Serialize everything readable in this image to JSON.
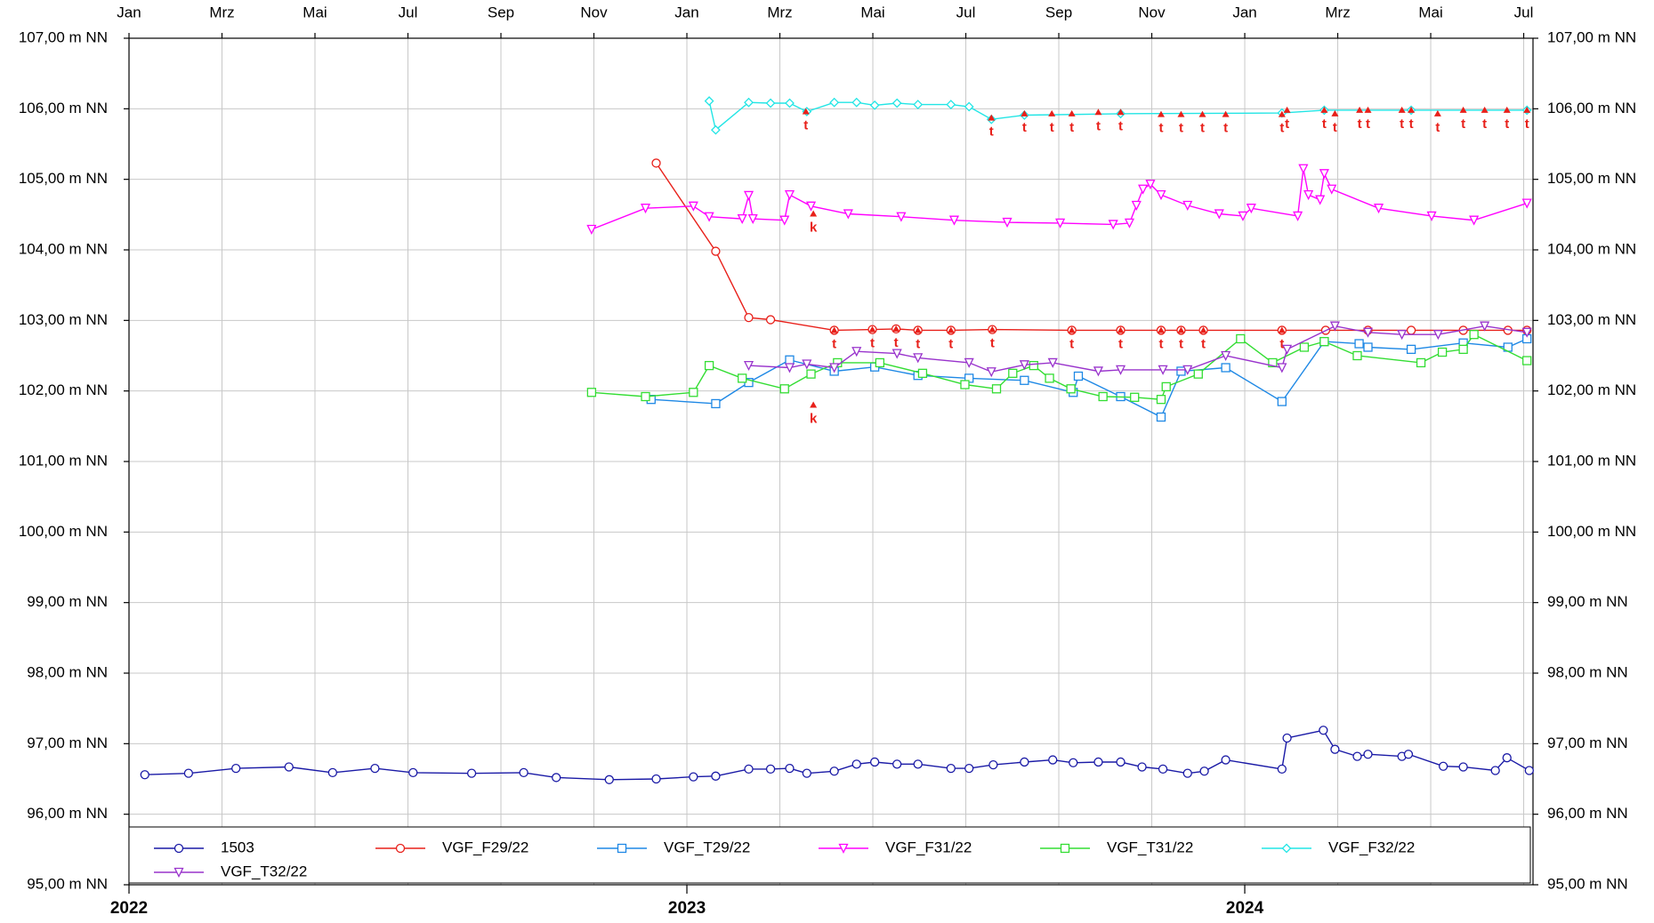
{
  "chart_data": {
    "type": "line",
    "xlim": [
      0,
      30.2
    ],
    "x2ticks": [
      {
        "value": 0,
        "label": "Jan"
      },
      {
        "value": 2,
        "label": "Mrz"
      },
      {
        "value": 4,
        "label": "Mai"
      },
      {
        "value": 6,
        "label": "Jul"
      },
      {
        "value": 8,
        "label": "Sep"
      },
      {
        "value": 10,
        "label": "Nov"
      },
      {
        "value": 12,
        "label": "Jan"
      },
      {
        "value": 14,
        "label": "Mrz"
      },
      {
        "value": 16,
        "label": "Mai"
      },
      {
        "value": 18,
        "label": "Jul"
      },
      {
        "value": 20,
        "label": "Sep"
      },
      {
        "value": 22,
        "label": "Nov"
      },
      {
        "value": 24,
        "label": "Jan"
      },
      {
        "value": 26,
        "label": "Mrz"
      },
      {
        "value": 28,
        "label": "Mai"
      },
      {
        "value": 30,
        "label": "Jul"
      }
    ],
    "xticks": [
      {
        "value": 0,
        "label": "2022"
      },
      {
        "value": 12,
        "label": "2023"
      },
      {
        "value": 24,
        "label": "2024"
      }
    ],
    "ylim": [
      95,
      107
    ],
    "yticks": [
      {
        "value": 95,
        "label": "95,00 m NN"
      },
      {
        "value": 96,
        "label": "96,00 m NN"
      },
      {
        "value": 97,
        "label": "97,00 m NN"
      },
      {
        "value": 98,
        "label": "98,00 m NN"
      },
      {
        "value": 99,
        "label": "99,00 m NN"
      },
      {
        "value": 100,
        "label": "100,00 m NN"
      },
      {
        "value": 101,
        "label": "101,00 m NN"
      },
      {
        "value": 102,
        "label": "102,00 m NN"
      },
      {
        "value": 103,
        "label": "103,00 m NN"
      },
      {
        "value": 104,
        "label": "104,00 m NN"
      },
      {
        "value": 105,
        "label": "105,00 m NN"
      },
      {
        "value": 106,
        "label": "106,00 m NN"
      },
      {
        "value": 107,
        "label": "107,00 m NN"
      }
    ],
    "grid": true,
    "legend": "bottom",
    "series": [
      {
        "name": "1503",
        "color": "#1a1aa6",
        "marker": "circle",
        "x": [
          0.34,
          1.28,
          2.3,
          3.44,
          4.38,
          5.29,
          6.11,
          7.37,
          8.49,
          9.19,
          10.33,
          11.34,
          12.14,
          12.62,
          13.33,
          13.8,
          14.21,
          14.58,
          15.17,
          15.65,
          16.04,
          16.52,
          16.97,
          17.68,
          18.07,
          18.59,
          19.26,
          19.87,
          20.31,
          20.85,
          21.33,
          21.79,
          22.24,
          22.77,
          23.13,
          23.59,
          24.8,
          24.91,
          25.69,
          25.94,
          26.42,
          26.65,
          27.38,
          27.52,
          28.27,
          28.7,
          29.39,
          29.64,
          30.12
        ],
        "values": [
          96.56,
          96.58,
          96.65,
          96.67,
          96.59,
          96.65,
          96.59,
          96.58,
          96.59,
          96.52,
          96.49,
          96.5,
          96.53,
          96.54,
          96.64,
          96.64,
          96.65,
          96.58,
          96.61,
          96.71,
          96.74,
          96.71,
          96.71,
          96.65,
          96.65,
          96.7,
          96.74,
          96.77,
          96.73,
          96.74,
          96.74,
          96.67,
          96.64,
          96.58,
          96.61,
          96.77,
          96.64,
          97.08,
          97.19,
          96.92,
          96.82,
          96.85,
          96.82,
          96.85,
          96.68,
          96.67,
          96.62,
          96.8,
          96.62
        ]
      },
      {
        "name": "VGF_F29/22",
        "color": "#e8201a",
        "marker": "circle",
        "x": [
          11.34,
          12.62,
          13.33,
          13.8,
          15.17,
          15.99,
          16.5,
          16.97,
          17.68,
          18.57,
          20.28,
          21.33,
          22.2,
          22.63,
          23.11,
          24.8,
          25.74,
          26.65,
          27.58,
          28.7,
          29.66,
          30.07
        ],
        "values": [
          105.23,
          103.98,
          103.04,
          103.01,
          102.86,
          102.87,
          102.88,
          102.86,
          102.86,
          102.87,
          102.86,
          102.86,
          102.86,
          102.86,
          102.86,
          102.86,
          102.86,
          102.86,
          102.86,
          102.86,
          102.86,
          102.86
        ]
      },
      {
        "name": "VGF_T29/22",
        "color": "#1e88e5",
        "marker": "square",
        "x": [
          11.23,
          12.62,
          13.33,
          14.21,
          15.17,
          16.04,
          16.97,
          18.07,
          19.26,
          20.31,
          20.42,
          21.33,
          22.2,
          22.63,
          23.59,
          24.8,
          25.71,
          26.46,
          26.65,
          27.58,
          28.7,
          29.66,
          30.07
        ],
        "values": [
          101.88,
          101.82,
          102.12,
          102.44,
          102.28,
          102.34,
          102.22,
          102.18,
          102.15,
          101.98,
          102.21,
          101.92,
          101.63,
          102.28,
          102.33,
          101.85,
          102.7,
          102.67,
          102.62,
          102.59,
          102.68,
          102.62,
          102.74
        ]
      },
      {
        "name": "VGF_F31/22",
        "color": "#ff00ff",
        "marker": "triangle",
        "x": [
          9.95,
          11.11,
          12.14,
          12.48,
          13.19,
          13.33,
          13.42,
          14.1,
          14.21,
          14.67,
          15.47,
          16.61,
          17.75,
          18.89,
          20.03,
          21.17,
          21.52,
          21.67,
          21.81,
          21.97,
          22.2,
          22.77,
          23.45,
          23.96,
          24.14,
          25.14,
          25.26,
          25.37,
          25.62,
          25.71,
          25.87,
          26.88,
          28.02,
          28.93,
          30.07
        ],
        "values": [
          104.29,
          104.59,
          104.62,
          104.47,
          104.44,
          104.77,
          104.44,
          104.42,
          104.78,
          104.62,
          104.51,
          104.47,
          104.42,
          104.39,
          104.38,
          104.36,
          104.38,
          104.63,
          104.86,
          104.93,
          104.78,
          104.63,
          104.51,
          104.48,
          104.59,
          104.48,
          105.15,
          104.78,
          104.71,
          105.08,
          104.86,
          104.59,
          104.48,
          104.42,
          104.66
        ]
      },
      {
        "name": "VGF_T31/22",
        "color": "#33dd33",
        "marker": "square",
        "x": [
          9.95,
          11.11,
          12.14,
          12.48,
          13.19,
          14.1,
          14.67,
          15.24,
          16.15,
          17.07,
          17.98,
          18.66,
          19.01,
          19.46,
          19.8,
          20.26,
          20.95,
          21.63,
          22.2,
          22.31,
          23.0,
          23.91,
          24.6,
          25.28,
          25.71,
          26.42,
          27.79,
          28.25,
          28.7,
          28.93,
          30.07
        ],
        "values": [
          101.98,
          101.92,
          101.98,
          102.36,
          102.18,
          102.03,
          102.24,
          102.4,
          102.4,
          102.25,
          102.09,
          102.03,
          102.25,
          102.36,
          102.18,
          102.03,
          101.92,
          101.91,
          101.88,
          102.06,
          102.24,
          102.74,
          102.4,
          102.62,
          102.7,
          102.5,
          102.4,
          102.55,
          102.59,
          102.8,
          102.43
        ]
      },
      {
        "name": "VGF_F32/22",
        "color": "#22e5e5",
        "marker": "diamond",
        "x": [
          12.48,
          12.62,
          13.33,
          13.8,
          14.21,
          14.58,
          15.17,
          15.65,
          16.04,
          16.52,
          16.97,
          17.68,
          18.07,
          18.55,
          19.26,
          21.33,
          24.8,
          25.71,
          27.58,
          30.07
        ],
        "values": [
          106.11,
          105.7,
          106.09,
          106.08,
          106.08,
          105.96,
          106.09,
          106.09,
          106.05,
          106.08,
          106.06,
          106.06,
          106.03,
          105.85,
          105.91,
          105.93,
          105.94,
          105.98,
          105.98,
          105.98
        ]
      },
      {
        "name": "VGF_T32/22",
        "color": "#9933cc",
        "marker": "triangle",
        "x": [
          13.33,
          14.21,
          14.58,
          15.17,
          15.65,
          16.52,
          16.97,
          18.07,
          18.55,
          19.26,
          19.87,
          20.85,
          21.33,
          22.24,
          22.77,
          23.59,
          24.8,
          24.91,
          25.94,
          26.65,
          27.38,
          28.16,
          29.16,
          30.07
        ],
        "values": [
          102.36,
          102.33,
          102.38,
          102.33,
          102.56,
          102.53,
          102.47,
          102.4,
          102.27,
          102.37,
          102.4,
          102.28,
          102.3,
          102.3,
          102.3,
          102.5,
          102.33,
          102.59,
          102.92,
          102.83,
          102.8,
          102.8,
          102.92,
          102.83
        ]
      }
    ],
    "annotations": [
      {
        "label": "t",
        "x": 14.56,
        "y": 105.96
      },
      {
        "label": "t",
        "x": 18.55,
        "y": 105.87
      },
      {
        "label": "t",
        "x": 19.26,
        "y": 105.93
      },
      {
        "label": "t",
        "x": 19.85,
        "y": 105.93
      },
      {
        "label": "t",
        "x": 20.28,
        "y": 105.93
      },
      {
        "label": "t",
        "x": 20.85,
        "y": 105.95
      },
      {
        "label": "t",
        "x": 21.33,
        "y": 105.95
      },
      {
        "label": "t",
        "x": 22.2,
        "y": 105.92
      },
      {
        "label": "t",
        "x": 22.63,
        "y": 105.92
      },
      {
        "label": "t",
        "x": 23.09,
        "y": 105.92
      },
      {
        "label": "t",
        "x": 23.59,
        "y": 105.92
      },
      {
        "label": "t",
        "x": 24.8,
        "y": 105.92
      },
      {
        "label": "t",
        "x": 24.91,
        "y": 105.98
      },
      {
        "label": "t",
        "x": 25.71,
        "y": 105.98
      },
      {
        "label": "t",
        "x": 25.94,
        "y": 105.93
      },
      {
        "label": "t",
        "x": 26.47,
        "y": 105.98
      },
      {
        "label": "t",
        "x": 26.65,
        "y": 105.98
      },
      {
        "label": "t",
        "x": 27.38,
        "y": 105.98
      },
      {
        "label": "t",
        "x": 27.58,
        "y": 105.98
      },
      {
        "label": "t",
        "x": 28.15,
        "y": 105.93
      },
      {
        "label": "t",
        "x": 28.7,
        "y": 105.98
      },
      {
        "label": "t",
        "x": 29.16,
        "y": 105.98
      },
      {
        "label": "t",
        "x": 29.64,
        "y": 105.98
      },
      {
        "label": "t",
        "x": 30.07,
        "y": 105.98
      },
      {
        "label": "t",
        "x": 15.17,
        "y": 102.86
      },
      {
        "label": "t",
        "x": 15.99,
        "y": 102.87
      },
      {
        "label": "t",
        "x": 16.5,
        "y": 102.88
      },
      {
        "label": "t",
        "x": 16.97,
        "y": 102.86
      },
      {
        "label": "t",
        "x": 17.68,
        "y": 102.86
      },
      {
        "label": "t",
        "x": 18.57,
        "y": 102.87
      },
      {
        "label": "t",
        "x": 20.28,
        "y": 102.86
      },
      {
        "label": "t",
        "x": 21.33,
        "y": 102.86
      },
      {
        "label": "t",
        "x": 22.2,
        "y": 102.86
      },
      {
        "label": "t",
        "x": 22.63,
        "y": 102.86
      },
      {
        "label": "t",
        "x": 23.11,
        "y": 102.86
      },
      {
        "label": "t",
        "x": 24.8,
        "y": 102.86
      },
      {
        "label": "k",
        "x": 14.72,
        "y": 104.51
      },
      {
        "label": "k",
        "x": 14.72,
        "y": 101.8
      }
    ]
  }
}
